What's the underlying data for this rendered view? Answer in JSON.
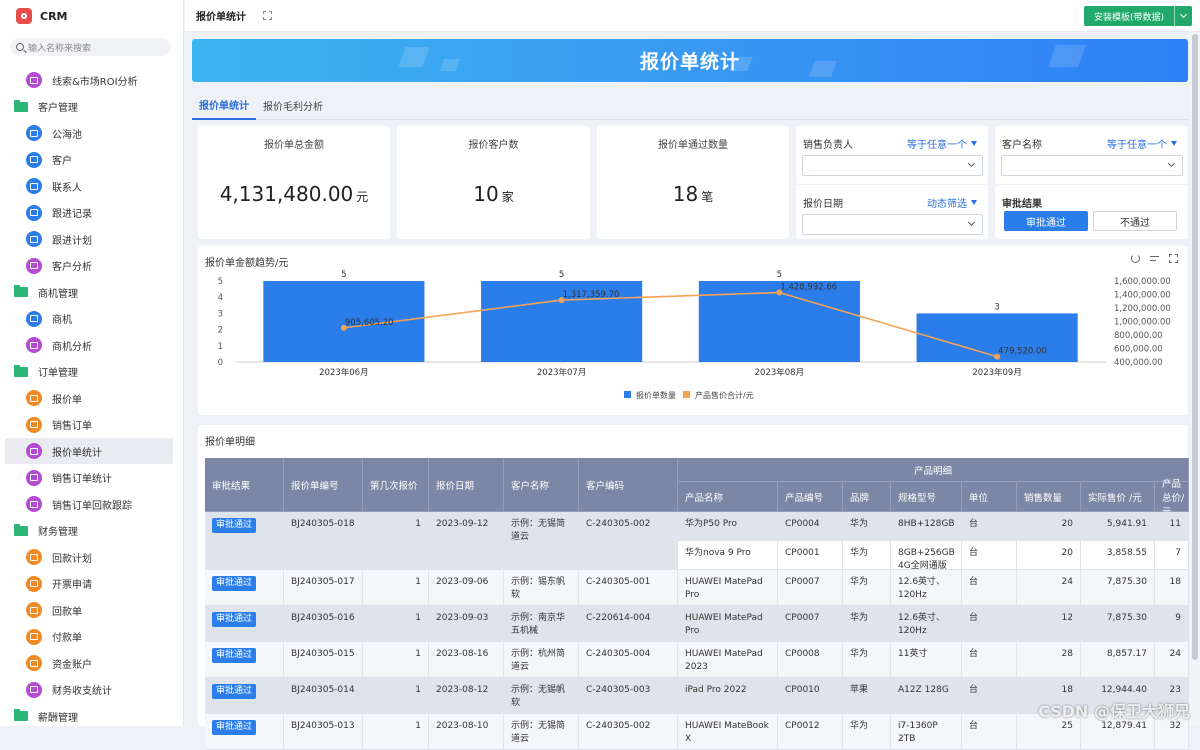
{
  "app": {
    "title": "CRM"
  },
  "search": {
    "placeholder": "输入名称来搜索"
  },
  "sidebar": {
    "items": [
      {
        "label": "线索&市场ROI分析",
        "type": "item",
        "icon": "chart-icon",
        "color": "#b44bd1"
      },
      {
        "label": "客户管理",
        "type": "group"
      },
      {
        "label": "公海池",
        "type": "item",
        "icon": "users-icon",
        "color": "#2b7de9"
      },
      {
        "label": "客户",
        "type": "item",
        "icon": "user-icon",
        "color": "#2b7de9"
      },
      {
        "label": "联系人",
        "type": "item",
        "icon": "contact-icon",
        "color": "#2b7de9"
      },
      {
        "label": "跟进记录",
        "type": "item",
        "icon": "record-icon",
        "color": "#2b7de9"
      },
      {
        "label": "跟进计划",
        "type": "item",
        "icon": "plan-icon",
        "color": "#2b7de9"
      },
      {
        "label": "客户分析",
        "type": "item",
        "icon": "chart-icon",
        "color": "#b44bd1"
      },
      {
        "label": "商机管理",
        "type": "group"
      },
      {
        "label": "商机",
        "type": "item",
        "icon": "target-icon",
        "color": "#2b7de9"
      },
      {
        "label": "商机分析",
        "type": "item",
        "icon": "chart-icon",
        "color": "#b44bd1"
      },
      {
        "label": "订单管理",
        "type": "group"
      },
      {
        "label": "报价单",
        "type": "item",
        "icon": "send-icon",
        "color": "#f08a24"
      },
      {
        "label": "销售订单",
        "type": "item",
        "icon": "order-icon",
        "color": "#f08a24"
      },
      {
        "label": "报价单统计",
        "type": "item",
        "icon": "chart-icon",
        "color": "#b44bd1",
        "active": true
      },
      {
        "label": "销售订单统计",
        "type": "item",
        "icon": "chart-icon",
        "color": "#b44bd1"
      },
      {
        "label": "销售订单回款跟踪",
        "type": "item",
        "icon": "chart-icon",
        "color": "#b44bd1"
      },
      {
        "label": "财务管理",
        "type": "group"
      },
      {
        "label": "回款计划",
        "type": "item",
        "icon": "calendar-icon",
        "color": "#f08a24"
      },
      {
        "label": "开票申请",
        "type": "item",
        "icon": "invoice-icon",
        "color": "#f08a24"
      },
      {
        "label": "回款单",
        "type": "item",
        "icon": "receipt-icon",
        "color": "#f08a24"
      },
      {
        "label": "付款单",
        "type": "item",
        "icon": "payment-icon",
        "color": "#f08a24"
      },
      {
        "label": "资金账户",
        "type": "item",
        "icon": "account-icon",
        "color": "#f08a24"
      },
      {
        "label": "财务收支统计",
        "type": "item",
        "icon": "chart-icon",
        "color": "#b44bd1"
      },
      {
        "label": "薪酬管理",
        "type": "group"
      }
    ]
  },
  "header": {
    "page_title": "报价单统计",
    "install_label": "安装模板(带数据)"
  },
  "banner": {
    "title": "报价单统计"
  },
  "tabs": [
    {
      "label": "报价单统计",
      "active": true
    },
    {
      "label": "报价毛利分析",
      "active": false
    }
  ],
  "kpis": [
    {
      "label": "报价单总金额",
      "value": "4,131,480.00",
      "unit": "元"
    },
    {
      "label": "报价客户数",
      "value": "10",
      "unit": "家"
    },
    {
      "label": "报价单通过数量",
      "value": "18",
      "unit": "笔"
    }
  ],
  "filters": {
    "owner": {
      "label": "销售负责人",
      "mode": "等于任意一个"
    },
    "customer": {
      "label": "客户名称",
      "mode": "等于任意一个"
    },
    "date": {
      "label": "报价日期",
      "mode": "动态筛选"
    },
    "approval": {
      "label": "审批结果",
      "options": [
        "审批通过",
        "不通过"
      ],
      "selected": "审批通过"
    }
  },
  "chart_card": {
    "title": "报价单金额趋势/元"
  },
  "chart_data": {
    "type": "bar",
    "categories": [
      "2023年06月",
      "2023年07月",
      "2023年08月",
      "2023年09月"
    ],
    "series": [
      {
        "name": "报价单数量",
        "type": "bar",
        "axis": "left",
        "values": [
          5,
          5,
          5,
          3
        ],
        "labels": [
          "5",
          "5",
          "5",
          "3"
        ],
        "color": "#2b7de9"
      },
      {
        "name": "产品售价合计/元",
        "type": "line",
        "axis": "right",
        "values": [
          905605.2,
          1317359.7,
          1428992.66,
          479520.0
        ],
        "labels": [
          "905,605.20",
          "1,317,359.70",
          "1,428,992.66",
          "479,520.00"
        ],
        "color": "#f5a356"
      }
    ],
    "y_left": {
      "min": 0,
      "max": 5,
      "ticks": [
        "0",
        "1",
        "2",
        "3",
        "4",
        "5"
      ]
    },
    "y_right": {
      "min": 400000,
      "max": 1600000,
      "ticks": [
        "400,000.00",
        "600,000.00",
        "800,000.00",
        "1,000,000.00",
        "1,200,000.00",
        "1,400,000.00",
        "1,600,000.00"
      ]
    },
    "legend": "bottom-center",
    "grid": false
  },
  "table": {
    "title": "报价单明细",
    "group_header": "产品明细",
    "columns": [
      "审批结果",
      "报价单编号",
      "第几次报价",
      "报价日期",
      "客户名称",
      "客户编码"
    ],
    "product_columns": [
      "产品名称",
      "产品编号",
      "品牌",
      "规格型号",
      "单位",
      "销售数量",
      "实际售价 /元",
      "产品总价/元"
    ],
    "rows": [
      {
        "status": "审批通过",
        "no": "BJ240305-018",
        "times": "1",
        "date": "2023-09-12",
        "customer": "示例：无锡简道云",
        "code": "C-240305-002",
        "products": [
          [
            "华为P50 Pro",
            "CP0004",
            "华为",
            "8HB+128GB",
            "台",
            "20",
            "5,941.91",
            "11"
          ],
          [
            "华为nova 9 Pro",
            "CP0001",
            "华为",
            "8GB+256GB 4G全网通版",
            "台",
            "20",
            "3,858.55",
            "7"
          ]
        ]
      },
      {
        "status": "审批通过",
        "no": "BJ240305-017",
        "times": "1",
        "date": "2023-09-06",
        "customer": "示例：锡东帆软",
        "code": "C-240305-001",
        "products": [
          [
            "HUAWEI MatePad Pro",
            "CP0007",
            "华为",
            "12.6英寸、120Hz",
            "台",
            "24",
            "7,875.30",
            "18"
          ]
        ]
      },
      {
        "status": "审批通过",
        "no": "BJ240305-016",
        "times": "1",
        "date": "2023-09-03",
        "customer": "示例：南京华五机械",
        "code": "C-220614-004",
        "products": [
          [
            "HUAWEI MatePad Pro",
            "CP0007",
            "华为",
            "12.6英寸、120Hz",
            "台",
            "12",
            "7,875.30",
            "9"
          ]
        ]
      },
      {
        "status": "审批通过",
        "no": "BJ240305-015",
        "times": "1",
        "date": "2023-08-16",
        "customer": "示例：杭州简道云",
        "code": "C-240305-004",
        "products": [
          [
            "HUAWEI MatePad 2023",
            "CP0008",
            "华为",
            "11英寸",
            "台",
            "28",
            "8,857.17",
            "24"
          ]
        ]
      },
      {
        "status": "审批通过",
        "no": "BJ240305-014",
        "times": "1",
        "date": "2023-08-12",
        "customer": "示例：无锡帆软",
        "code": "C-240305-003",
        "products": [
          [
            "iPad Pro 2022",
            "CP0010",
            "苹果",
            "A12Z 128G",
            "台",
            "18",
            "12,944.40",
            "23"
          ]
        ]
      },
      {
        "status": "审批通过",
        "no": "BJ240305-013",
        "times": "1",
        "date": "2023-08-10",
        "customer": "示例：无锡简道云",
        "code": "C-240305-002",
        "products": [
          [
            "HUAWEI MateBook X",
            "CP0012",
            "华为",
            "i7-1360P 2TB",
            "台",
            "25",
            "12,879.41",
            "32"
          ]
        ]
      }
    ]
  },
  "watermark": "CSDN @保卫大狮兄",
  "colors": {
    "accent": "#2b7de9",
    "install": "#20a96b",
    "table_header": "#7b87a4"
  }
}
